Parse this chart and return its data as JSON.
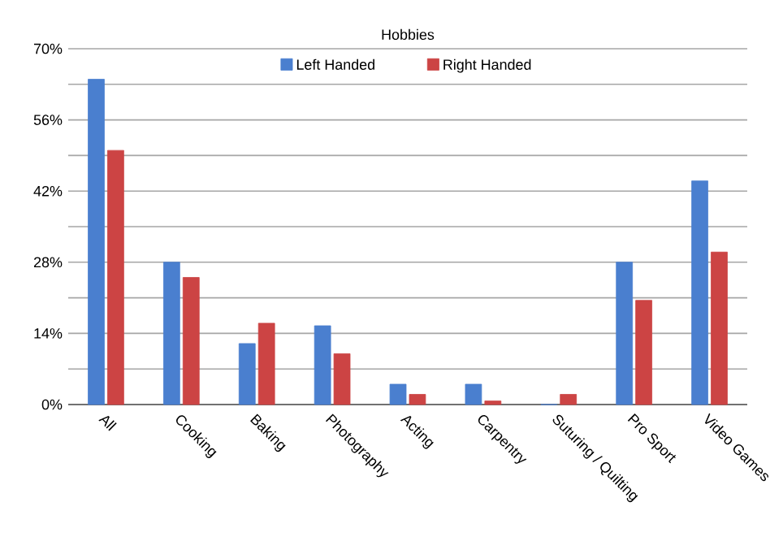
{
  "chart_data": {
    "type": "bar",
    "title": "Hobbies",
    "categories": [
      "All",
      "Cooking",
      "Baking",
      "Photography",
      "Acting",
      "Carpentry",
      "Suturing / Quilting",
      "Pro Sport",
      "Video Games"
    ],
    "series": [
      {
        "name": "Left Handed",
        "color": "#4a7fcf",
        "values": [
          64,
          28,
          12,
          15.5,
          4,
          4,
          0,
          28,
          44
        ]
      },
      {
        "name": "Right Handed",
        "color": "#cc4444",
        "values": [
          50,
          25,
          16,
          10,
          2,
          0.7,
          2,
          20.5,
          30
        ]
      }
    ],
    "ylim": [
      0,
      70
    ],
    "yticks": [
      {
        "value": 0,
        "label": "0%"
      },
      {
        "value": 7,
        "label": null
      },
      {
        "value": 14,
        "label": "14%"
      },
      {
        "value": 21,
        "label": null
      },
      {
        "value": 28,
        "label": "28%"
      },
      {
        "value": 35,
        "label": null
      },
      {
        "value": 42,
        "label": "42%"
      },
      {
        "value": 49,
        "label": null
      },
      {
        "value": 56,
        "label": "56%"
      },
      {
        "value": 63,
        "label": null
      },
      {
        "value": 70,
        "label": "70%"
      }
    ],
    "grid": "y",
    "legend": "top"
  }
}
